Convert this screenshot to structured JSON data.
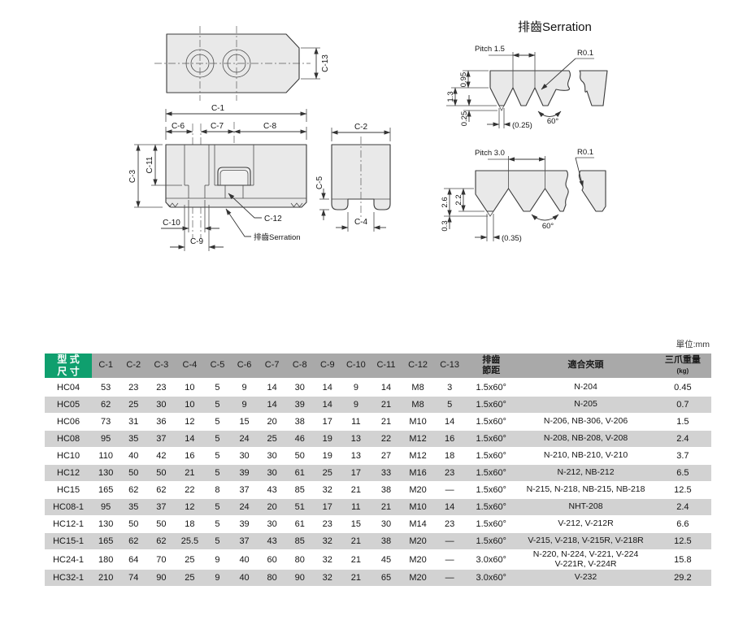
{
  "colors": {
    "accent_green": "#0f9f6e",
    "header_gray": "#a9a9a9",
    "row_alt_gray": "#d2d2d2",
    "drawing_fill": "#e9e9e9",
    "line": "#3a3a3a"
  },
  "drawing": {
    "labels": {
      "c1": "C-1",
      "c2": "C-2",
      "c3": "C-3",
      "c4": "C-4",
      "c5": "C-5",
      "c6": "C-6",
      "c7": "C-7",
      "c8": "C-8",
      "c9": "C-9",
      "c10": "C-10",
      "c11": "C-11",
      "c12": "C-12",
      "c13": "C-13"
    },
    "serration_title": "排齒Serration",
    "serration_callout": "排齒Serration",
    "profile1": {
      "pitch": "Pitch 1.5",
      "radius": "R0.1",
      "dim_top": "0.95",
      "dim_depth": "1.3",
      "dim_tip": "0.25",
      "dim_flat": "(0.25)",
      "angle": "60°"
    },
    "profile2": {
      "pitch": "Pitch 3.0",
      "radius": "R0.1",
      "dim_total": "2.6",
      "dim_depth": "2.2",
      "dim_tip": "0.3",
      "dim_flat": "(0.35)",
      "angle": "60°"
    }
  },
  "table": {
    "unit_note": "單位:mm",
    "header": {
      "model_line1": "型 式",
      "model_line2": "尺 寸",
      "dims": [
        "C-1",
        "C-2",
        "C-3",
        "C-4",
        "C-5",
        "C-6",
        "C-7",
        "C-8",
        "C-9",
        "C-10",
        "C-11",
        "C-12",
        "C-13"
      ],
      "pitch_line1": "排齒",
      "pitch_line2": "節距",
      "chuck": "適合夾頭",
      "weight": "三爪重量",
      "weight_unit": "(kg)"
    },
    "rows": [
      {
        "model": "HC04",
        "dims": [
          "53",
          "23",
          "23",
          "10",
          "5",
          "9",
          "14",
          "30",
          "14",
          "9",
          "14",
          "M8",
          "3"
        ],
        "pitch": "1.5x60°",
        "chucks": "N-204",
        "weight": "0.45"
      },
      {
        "model": "HC05",
        "dims": [
          "62",
          "25",
          "30",
          "10",
          "5",
          "9",
          "14",
          "39",
          "14",
          "9",
          "21",
          "M8",
          "5"
        ],
        "pitch": "1.5x60°",
        "chucks": "N-205",
        "weight": "0.7"
      },
      {
        "model": "HC06",
        "dims": [
          "73",
          "31",
          "36",
          "12",
          "5",
          "15",
          "20",
          "38",
          "17",
          "11",
          "21",
          "M10",
          "14"
        ],
        "pitch": "1.5x60°",
        "chucks": "N-206, NB-306, V-206",
        "weight": "1.5"
      },
      {
        "model": "HC08",
        "dims": [
          "95",
          "35",
          "37",
          "14",
          "5",
          "24",
          "25",
          "46",
          "19",
          "13",
          "22",
          "M12",
          "16"
        ],
        "pitch": "1.5x60°",
        "chucks": "N-208, NB-208, V-208",
        "weight": "2.4"
      },
      {
        "model": "HC10",
        "dims": [
          "110",
          "40",
          "42",
          "16",
          "5",
          "30",
          "30",
          "50",
          "19",
          "13",
          "27",
          "M12",
          "18"
        ],
        "pitch": "1.5x60°",
        "chucks": "N-210, NB-210, V-210",
        "weight": "3.7"
      },
      {
        "model": "HC12",
        "dims": [
          "130",
          "50",
          "50",
          "21",
          "5",
          "39",
          "30",
          "61",
          "25",
          "17",
          "33",
          "M16",
          "23"
        ],
        "pitch": "1.5x60°",
        "chucks": "N-212, NB-212",
        "weight": "6.5"
      },
      {
        "model": "HC15",
        "dims": [
          "165",
          "62",
          "62",
          "22",
          "8",
          "37",
          "43",
          "85",
          "32",
          "21",
          "38",
          "M20",
          "—"
        ],
        "pitch": "1.5x60°",
        "chucks": "N-215, N-218, NB-215, NB-218",
        "weight": "12.5"
      },
      {
        "model": "HC08-1",
        "dims": [
          "95",
          "35",
          "37",
          "12",
          "5",
          "24",
          "20",
          "51",
          "17",
          "11",
          "21",
          "M10",
          "14"
        ],
        "pitch": "1.5x60°",
        "chucks": "NHT-208",
        "weight": "2.4"
      },
      {
        "model": "HC12-1",
        "dims": [
          "130",
          "50",
          "50",
          "18",
          "5",
          "39",
          "30",
          "61",
          "23",
          "15",
          "30",
          "M14",
          "23"
        ],
        "pitch": "1.5x60°",
        "chucks": "V-212, V-212R",
        "weight": "6.6"
      },
      {
        "model": "HC15-1",
        "dims": [
          "165",
          "62",
          "62",
          "25.5",
          "5",
          "37",
          "43",
          "85",
          "32",
          "21",
          "38",
          "M20",
          "—"
        ],
        "pitch": "1.5x60°",
        "chucks": "V-215, V-218, V-215R, V-218R",
        "weight": "12.5"
      },
      {
        "model": "HC24-1",
        "dims": [
          "180",
          "64",
          "70",
          "25",
          "9",
          "40",
          "60",
          "80",
          "32",
          "21",
          "45",
          "M20",
          "—"
        ],
        "pitch": "3.0x60°",
        "chucks": "N-220, N-224, V-221, V-224\nV-221R, V-224R",
        "weight": "15.8"
      },
      {
        "model": "HC32-1",
        "dims": [
          "210",
          "74",
          "90",
          "25",
          "9",
          "40",
          "80",
          "90",
          "32",
          "21",
          "65",
          "M20",
          "—"
        ],
        "pitch": "3.0x60°",
        "chucks": "V-232",
        "weight": "29.2"
      }
    ]
  }
}
